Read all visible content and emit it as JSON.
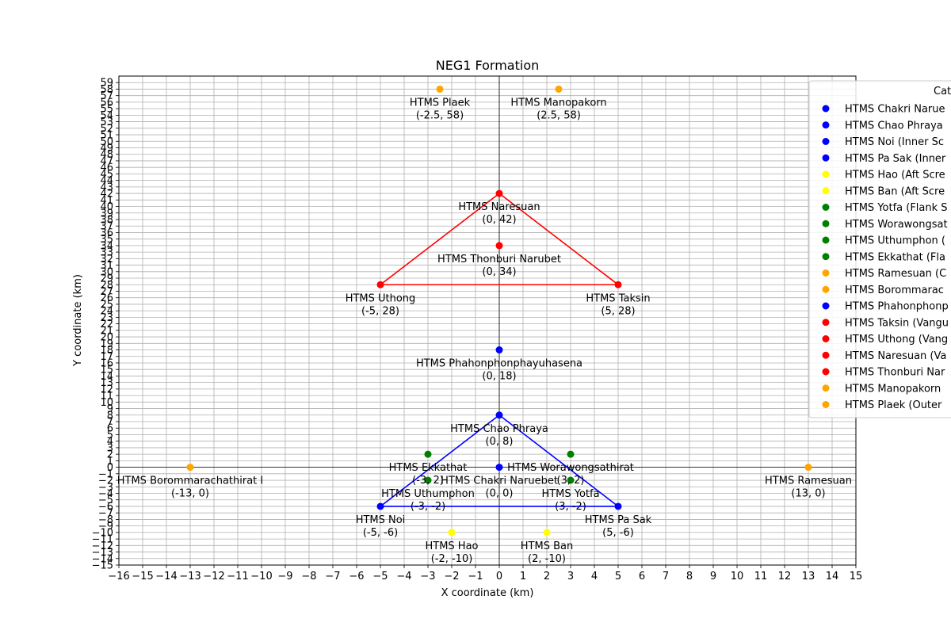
{
  "chart_data": {
    "type": "scatter",
    "title": "NEG1 Formation",
    "xlabel": "X coordinate (km)",
    "ylabel": "Y coordinate (km)",
    "xlim": [
      -16,
      15
    ],
    "ylim": [
      -15,
      60
    ],
    "xticks": [
      -16,
      -15,
      -14,
      -13,
      -12,
      -11,
      -10,
      -9,
      -8,
      -7,
      -6,
      -5,
      -4,
      -3,
      -2,
      -1,
      0,
      1,
      2,
      3,
      4,
      5,
      6,
      7,
      8,
      9,
      10,
      11,
      12,
      13,
      14,
      15
    ],
    "yticks": [
      -15,
      -14,
      -13,
      -12,
      -11,
      -10,
      -9,
      -8,
      -7,
      -6,
      -5,
      -4,
      -3,
      -2,
      -1,
      0,
      1,
      2,
      3,
      4,
      5,
      6,
      7,
      8,
      9,
      10,
      11,
      12,
      13,
      14,
      15,
      16,
      17,
      18,
      19,
      20,
      21,
      22,
      23,
      24,
      25,
      26,
      27,
      28,
      29,
      30,
      31,
      32,
      33,
      34,
      35,
      36,
      37,
      38,
      39,
      40,
      41,
      42,
      43,
      44,
      45,
      46,
      47,
      48,
      49,
      50,
      51,
      52,
      53,
      54,
      55,
      56,
      57,
      58,
      59
    ],
    "grid": true,
    "legend_title": "Cat",
    "legend_position": "right (clipped)",
    "colors": {
      "blue": "#0000ff",
      "yellow": "#ffff00",
      "green": "#008000",
      "orange": "#ffa500",
      "red": "#ff0000",
      "grid": "#b0b0b0"
    },
    "points": [
      {
        "name": "HTMS Chakri Naruebet",
        "x": 0,
        "y": 0,
        "coord": "(0, 0)",
        "color": "blue",
        "legend": "HTMS Chakri Narue"
      },
      {
        "name": "HTMS Chao Phraya",
        "x": 0,
        "y": 8,
        "coord": "(0, 8)",
        "color": "blue",
        "legend": "HTMS Chao Phraya"
      },
      {
        "name": "HTMS Noi",
        "x": -5,
        "y": -6,
        "coord": "(-5, -6)",
        "color": "blue",
        "legend": "HTMS Noi (Inner Sc"
      },
      {
        "name": "HTMS Pa Sak",
        "x": 5,
        "y": -6,
        "coord": "(5, -6)",
        "color": "blue",
        "legend": "HTMS Pa Sak (Inner"
      },
      {
        "name": "HTMS Hao",
        "x": -2,
        "y": -10,
        "coord": "(-2, -10)",
        "color": "yellow",
        "legend": "HTMS Hao (Aft Scre"
      },
      {
        "name": "HTMS Ban",
        "x": 2,
        "y": -10,
        "coord": "(2, -10)",
        "color": "yellow",
        "legend": "HTMS Ban (Aft Scre"
      },
      {
        "name": "HTMS Yotfa",
        "x": 3,
        "y": -2,
        "coord": "(3, -2)",
        "color": "green",
        "legend": "HTMS Yotfa (Flank S"
      },
      {
        "name": "HTMS Worawongsathirat",
        "x": 3,
        "y": 2,
        "coord": "(3, 2)",
        "color": "green",
        "legend": "HTMS Worawongsat"
      },
      {
        "name": "HTMS Uthumphon",
        "x": -3,
        "y": -2,
        "coord": "(-3, -2)",
        "color": "green",
        "legend": "HTMS Uthumphon ("
      },
      {
        "name": "HTMS Ekkathat",
        "x": -3,
        "y": 2,
        "coord": "(-3, 2)",
        "color": "green",
        "legend": "HTMS Ekkathat (Fla"
      },
      {
        "name": "HTMS Ramesuan",
        "x": 13,
        "y": 0,
        "coord": "(13, 0)",
        "color": "orange",
        "legend": "HTMS Ramesuan (C"
      },
      {
        "name": "HTMS Borommarachathirat I",
        "x": -13,
        "y": 0,
        "coord": "(-13, 0)",
        "color": "orange",
        "legend": "HTMS Borommarac"
      },
      {
        "name": "HTMS Phahonphonphayuhasena",
        "x": 0,
        "y": 18,
        "coord": "(0, 18)",
        "color": "blue",
        "legend": "HTMS Phahonphonp"
      },
      {
        "name": "HTMS Taksin",
        "x": 5,
        "y": 28,
        "coord": "(5, 28)",
        "color": "red",
        "legend": "HTMS Taksin (Vangu"
      },
      {
        "name": "HTMS Uthong",
        "x": -5,
        "y": 28,
        "coord": "(-5, 28)",
        "color": "red",
        "legend": "HTMS Uthong (Vang"
      },
      {
        "name": "HTMS Naresuan",
        "x": 0,
        "y": 42,
        "coord": "(0, 42)",
        "color": "red",
        "legend": "HTMS Naresuan (Va"
      },
      {
        "name": "HTMS Thonburi Narubet",
        "x": 0,
        "y": 34,
        "coord": "(0, 34)",
        "color": "red",
        "legend": "HTMS Thonburi Nar"
      },
      {
        "name": "HTMS Manopakorn",
        "x": 2.5,
        "y": 58,
        "coord": "(2.5, 58)",
        "color": "orange",
        "legend": "HTMS Manopakorn"
      },
      {
        "name": "HTMS Plaek",
        "x": -2.5,
        "y": 58,
        "coord": "(-2.5, 58)",
        "color": "orange",
        "legend": "HTMS Plaek (Outer"
      }
    ],
    "triangles": [
      {
        "color": "blue",
        "vertices": [
          [
            0,
            8
          ],
          [
            -5,
            -6
          ],
          [
            5,
            -6
          ]
        ]
      },
      {
        "color": "red",
        "vertices": [
          [
            0,
            42
          ],
          [
            -5,
            28
          ],
          [
            5,
            28
          ]
        ]
      }
    ]
  }
}
